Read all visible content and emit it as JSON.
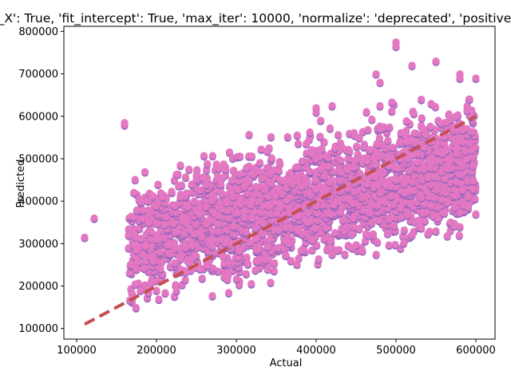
{
  "chart_data": {
    "type": "scatter",
    "title": "{'copy_X': True, 'fit_intercept': True, 'max_iter': 10000, 'normalize': 'deprecated', 'positive': False",
    "xlabel": "Actual",
    "ylabel": "Predicted",
    "xlim": [
      84000,
      624000
    ],
    "ylim": [
      75000,
      812000
    ],
    "xticks": [
      100000,
      200000,
      300000,
      400000,
      500000,
      600000
    ],
    "yticks": [
      100000,
      200000,
      300000,
      400000,
      500000,
      600000,
      700000,
      800000
    ],
    "xtick_labels": [
      "100000",
      "200000",
      "300000",
      "400000",
      "500000",
      "600000"
    ],
    "ytick_labels": [
      "100000",
      "200000",
      "300000",
      "400000",
      "500000",
      "600000",
      "700000",
      "800000"
    ],
    "grid": false,
    "point_color": "#e377c2",
    "point_edge_color": "#9467bd",
    "reference_line": {
      "style": "dashed",
      "color": "#c44e52",
      "x": [
        110000,
        600000
      ],
      "y": [
        110000,
        600000
      ]
    },
    "outliers": {
      "x": [
        110000,
        122000,
        160000,
        160000,
        165000,
        170000,
        175000,
        180000,
        190000,
        200000,
        230000,
        230000,
        400000,
        400000,
        420000,
        420000,
        475000,
        480000,
        500000,
        500000,
        520000,
        520000,
        550000,
        550000,
        580000,
        580000,
        580000,
        600000,
        600000
      ],
      "y": [
        315000,
        360000,
        585000,
        580000,
        320000,
        250000,
        240000,
        190000,
        185000,
        190000,
        485000,
        410000,
        620000,
        610000,
        625000,
        275000,
        700000,
        680000,
        775000,
        765000,
        720000,
        320000,
        730000,
        330000,
        700000,
        690000,
        340000,
        690000,
        370000
      ]
    },
    "bulk": {
      "x_min": 165000,
      "x_max": 600000,
      "count": 2600,
      "mean_slope": 0.45,
      "mean_intercept": 225000,
      "spread": 65000
    }
  }
}
